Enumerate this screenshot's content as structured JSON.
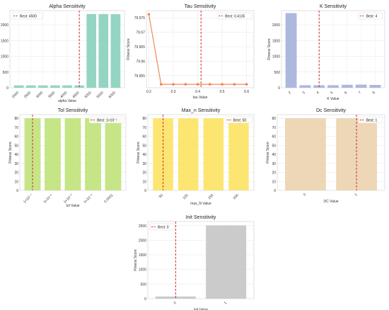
{
  "chart_data": [
    {
      "type": "bar",
      "title": "Alpha Sensitivity",
      "xlabel": "alpha Value",
      "ylabel": "Fitness Score",
      "categories": [
        "2000",
        "2500",
        "3000",
        "3500",
        "4000",
        "4500",
        "5000",
        "5500",
        "6000"
      ],
      "values": [
        75,
        75,
        75,
        75,
        75,
        75,
        2340,
        2340,
        2335
      ],
      "ylim": [
        0,
        2450
      ],
      "yticks": [
        0,
        500,
        1000,
        1500,
        2000
      ],
      "best_index": 5,
      "legend": "Best: 4500",
      "legend_position": "upper-left",
      "color": "#8dd3bf",
      "grid": true
    },
    {
      "type": "line",
      "title": "Tau Sensitivity",
      "xlabel": "tau Value",
      "ylabel": "Fitness Score",
      "x": [
        0.2,
        0.25,
        0.3,
        0.35,
        0.4,
        0.45,
        0.5,
        0.55,
        0.6
      ],
      "values": [
        79.9762,
        79.952,
        79.952,
        79.952,
        79.952,
        79.952,
        79.952,
        79.952,
        79.952
      ],
      "xlim": [
        0.19,
        0.63
      ],
      "ylim": [
        79.9508,
        79.9775
      ],
      "xticks": [
        0.2,
        0.3,
        0.4,
        0.5,
        0.6
      ],
      "yticks": [
        79.955,
        79.96,
        79.965,
        79.97,
        79.975
      ],
      "best_x": 0.4135,
      "legend": "Best: 0.4135",
      "legend_position": "upper-right",
      "color": "#f0875a",
      "grid": true
    },
    {
      "type": "bar",
      "title": "K Sensitivity",
      "xlabel": "K Value",
      "ylabel": "Fitness Score",
      "categories": [
        "2",
        "3",
        "4",
        "5",
        "6",
        "7",
        "8"
      ],
      "values": [
        2370,
        80,
        80,
        80,
        95,
        100,
        90
      ],
      "ylim": [
        0,
        2450
      ],
      "yticks": [
        0,
        500,
        1000,
        1500,
        2000
      ],
      "best_index": 2,
      "legend": "Best: 4",
      "legend_position": "upper-right",
      "color": "#a8b4dc",
      "grid": true
    },
    {
      "type": "bar",
      "title": "Tol Sensitivity",
      "xlabel": "tol Value",
      "ylabel": "Fitness Score",
      "categories": [
        "1×10⁻⁷",
        "1×10⁻⁶",
        "1×10⁻⁵",
        "1×10⁻⁴",
        "0.0001"
      ],
      "values": [
        80,
        80,
        80,
        80,
        80
      ],
      "ylim": [
        0,
        84
      ],
      "yticks": [
        0,
        10,
        20,
        30,
        40,
        50,
        60,
        70,
        80
      ],
      "best_index": 0,
      "legend": "Best: 1×10⁻⁷",
      "legend_position": "upper-right",
      "color": "#c2e481",
      "grid": true
    },
    {
      "type": "bar",
      "title": "Max_n Sensitivity",
      "xlabel": "max_N Value",
      "ylabel": "Fitness Score",
      "categories": [
        "50",
        "100",
        "150",
        "200"
      ],
      "values": [
        80,
        80,
        80,
        80
      ],
      "ylim": [
        0,
        84
      ],
      "yticks": [
        0,
        10,
        20,
        30,
        40,
        50,
        60,
        70,
        80
      ],
      "best_index": 0,
      "legend": "Best: 50",
      "legend_position": "upper-right",
      "color": "#fde46a",
      "grid": true
    },
    {
      "type": "bar",
      "title": "Dc Sensitivity",
      "xlabel": "DC Value",
      "ylabel": "Fitness Score",
      "categories": [
        "0",
        "1"
      ],
      "values": [
        80,
        80
      ],
      "ylim": [
        0,
        84
      ],
      "yticks": [
        0,
        10,
        20,
        30,
        40,
        50,
        60,
        70,
        80
      ],
      "best_index": 1,
      "legend": "Best: 1",
      "legend_position": "upper-right",
      "color": "#ecd5b3",
      "grid": true
    },
    {
      "type": "bar",
      "title": "Init Sensitivity",
      "xlabel": "init Value",
      "ylabel": "Fitness Score",
      "categories": [
        "0",
        "1"
      ],
      "values": [
        75,
        2510
      ],
      "ylim": [
        0,
        2640
      ],
      "yticks": [
        0,
        500,
        1000,
        1500,
        2000,
        2500
      ],
      "best_index": 0,
      "legend": "Best: 0",
      "legend_position": "upper-left",
      "color": "#c8c8c8",
      "grid": true
    }
  ]
}
